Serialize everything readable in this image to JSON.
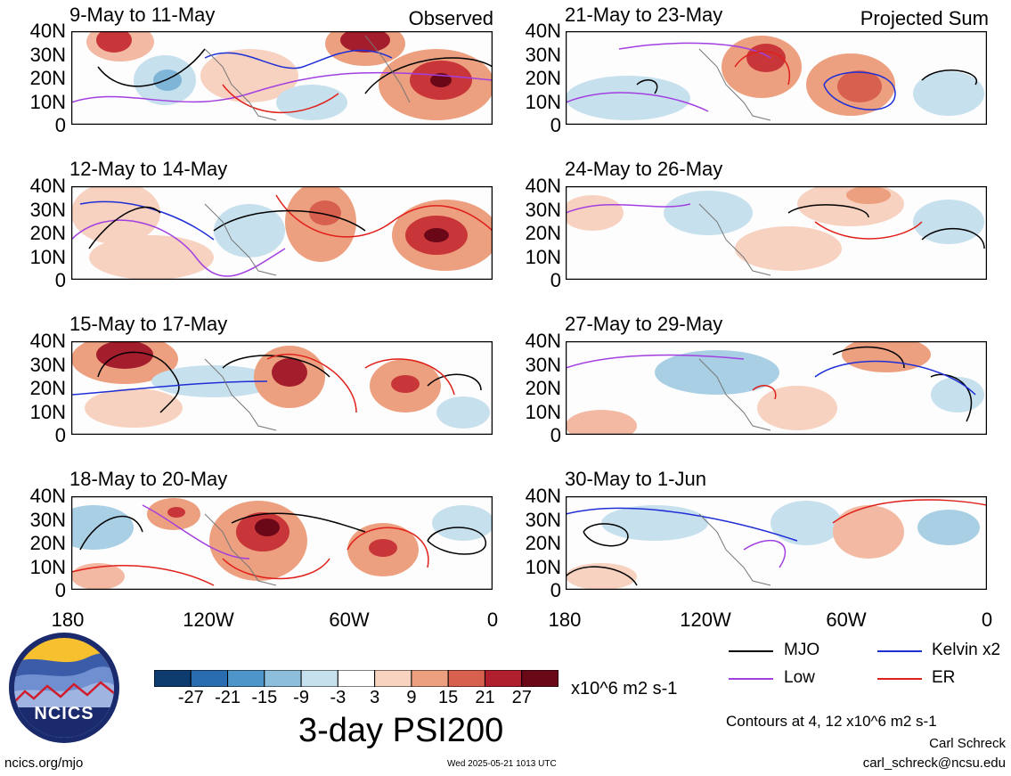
{
  "panels_left": [
    {
      "title": "9-May to 11-May",
      "tag": "Observed"
    },
    {
      "title": "12-May to 14-May",
      "tag": ""
    },
    {
      "title": "15-May to 17-May",
      "tag": ""
    },
    {
      "title": "18-May to 20-May",
      "tag": ""
    }
  ],
  "panels_right": [
    {
      "title": "21-May to 23-May",
      "tag": "Projected Sum"
    },
    {
      "title": "24-May to 26-May",
      "tag": ""
    },
    {
      "title": "27-May to 29-May",
      "tag": ""
    },
    {
      "title": "30-May to 1-Jun",
      "tag": ""
    }
  ],
  "lat_labels": [
    "40N",
    "30N",
    "20N",
    "10N",
    "0"
  ],
  "lon_labels": [
    "180",
    "120W",
    "60W",
    "0"
  ],
  "colorbar": {
    "ticks": [
      "-27",
      "-21",
      "-15",
      "-9",
      "-3",
      "3",
      "9",
      "15",
      "21",
      "27"
    ],
    "colors": [
      "#0d3b6e",
      "#2a6cb0",
      "#4e95c9",
      "#8dbfdc",
      "#c6e0ee",
      "#ffffff",
      "#f8d3c0",
      "#eda07f",
      "#d8604e",
      "#b01f2e",
      "#6b0818"
    ],
    "units": "x10^6 m2 s-1"
  },
  "product_title": "3-day PSI200",
  "legend": [
    {
      "label": "MJO",
      "color": "#000000"
    },
    {
      "label": "Kelvin x2",
      "color": "#1f2fd6"
    },
    {
      "label": "Low",
      "color": "#a23fe0"
    },
    {
      "label": "ER",
      "color": "#e0201a"
    }
  ],
  "contour_note": "Contours at 4, 12 x10^6 m2 s-1",
  "author": "Carl Schreck",
  "email": "carl_schreck@ncsu.edu",
  "site": "ncics.org/mjo",
  "timestamp": "Wed 2025-05-21 1013 UTC",
  "logo_text": "NCICS"
}
